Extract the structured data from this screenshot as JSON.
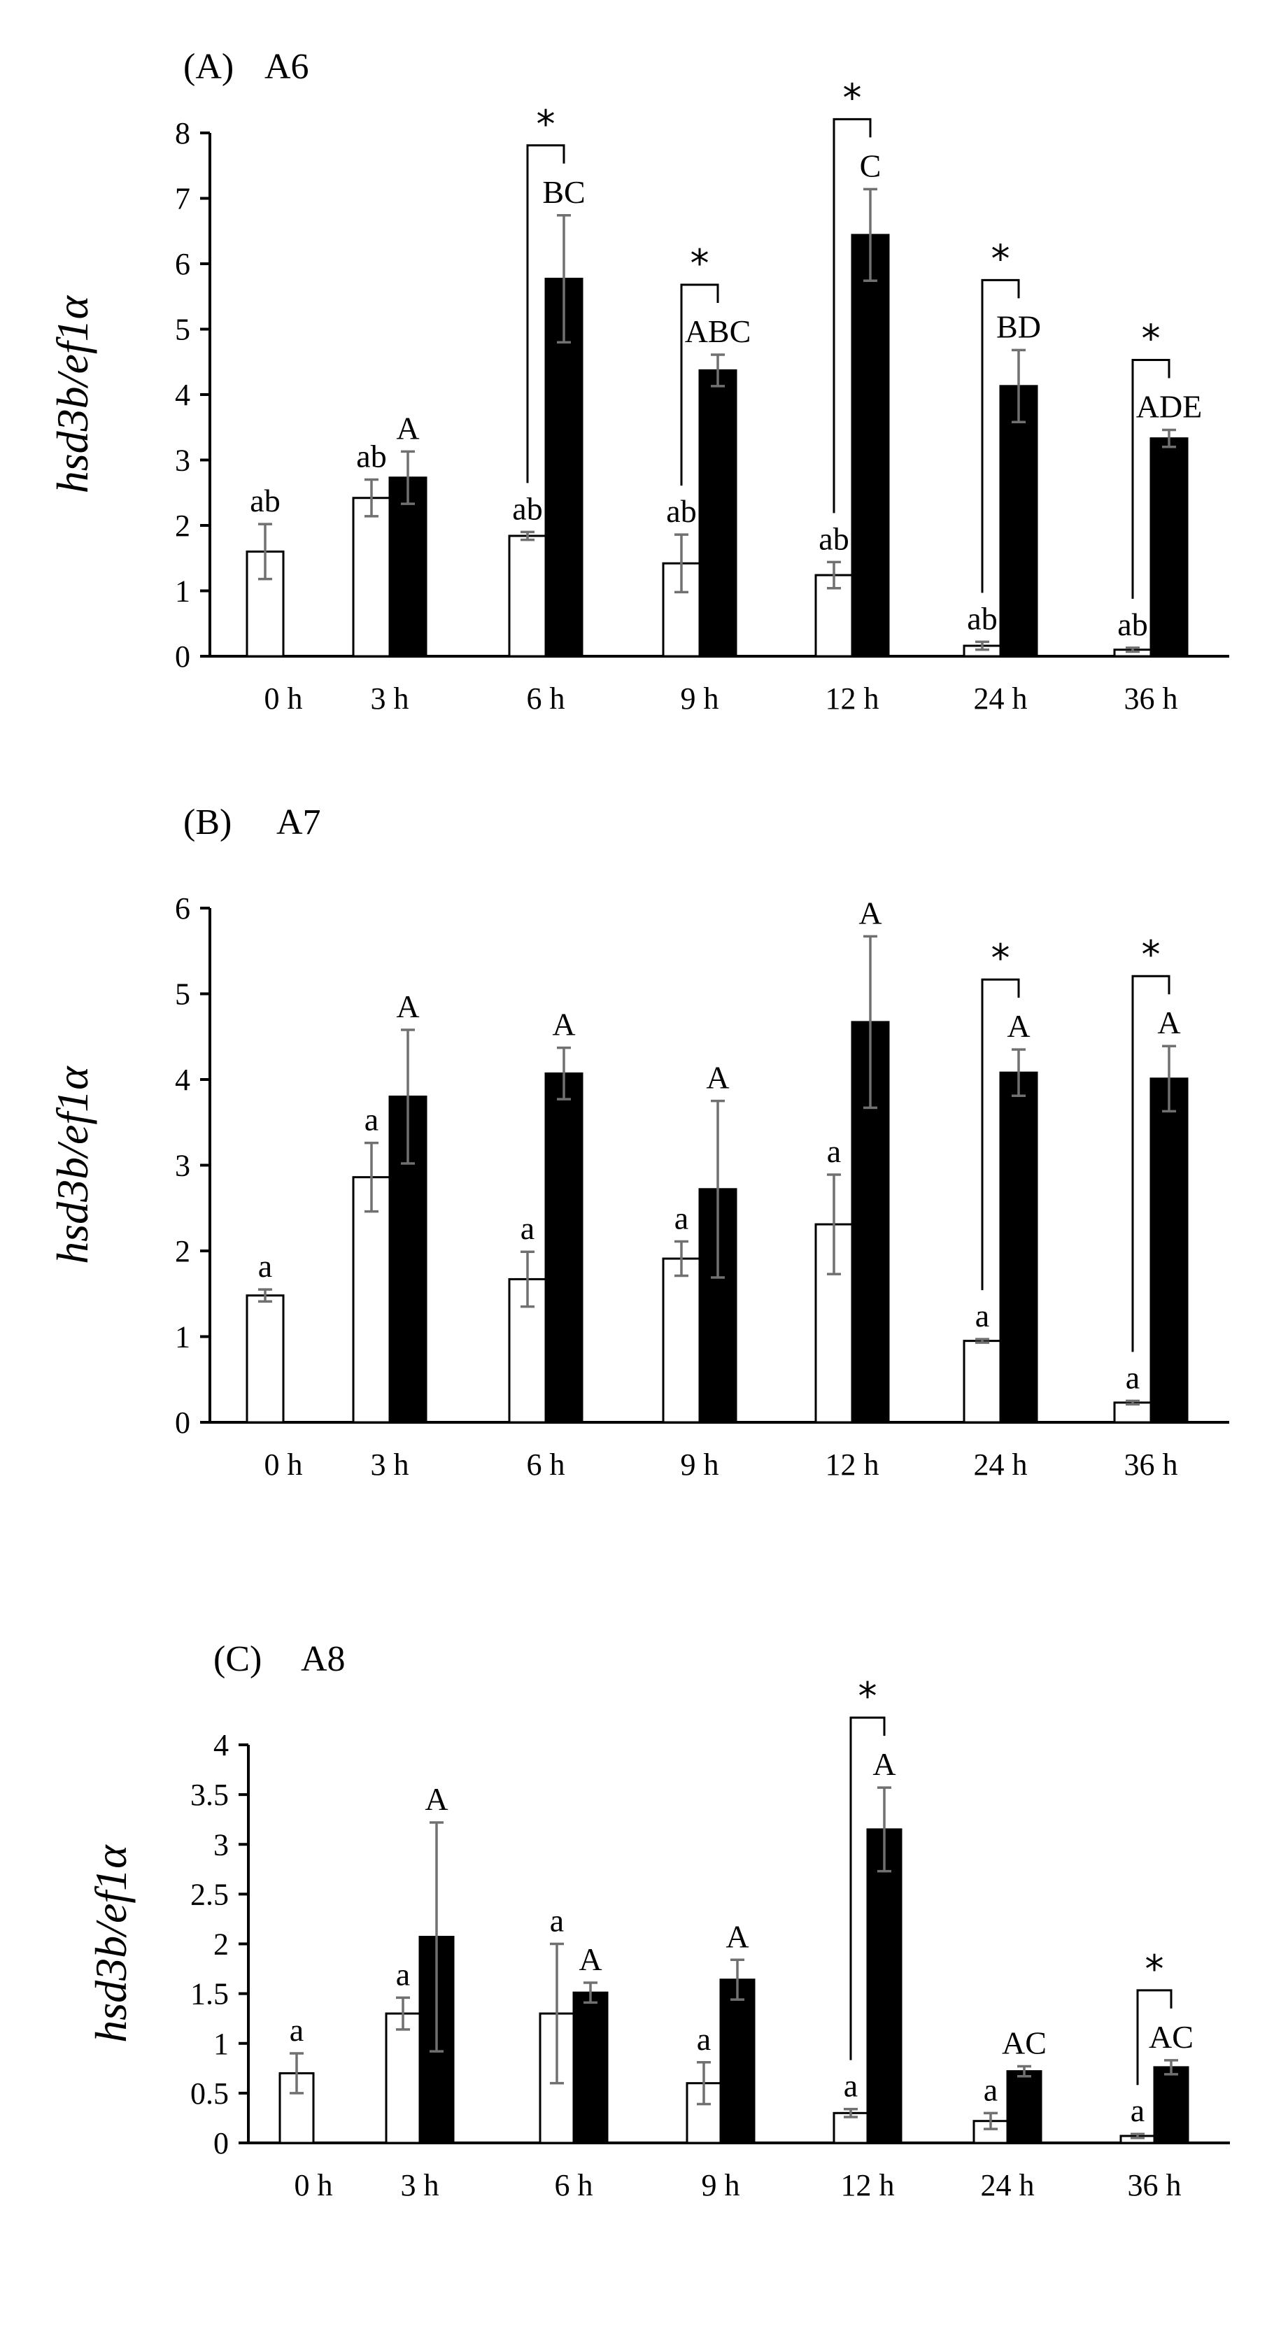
{
  "chart_data": [
    {
      "type": "bar",
      "panel_label": "(A)",
      "title": "A6",
      "ylabel": "hsd3b/ef1α",
      "xlabel": "",
      "categories": [
        "0 h",
        "3 h",
        "6 h",
        "9 h",
        "12 h",
        "24 h",
        "36 h"
      ],
      "ylim": [
        0,
        8
      ],
      "yticks": [
        "0",
        "1",
        "2",
        "3",
        "4",
        "5",
        "6",
        "7",
        "8"
      ],
      "series": [
        {
          "name": "white",
          "fill": "#ffffff",
          "values": [
            1.6,
            2.42,
            1.84,
            1.42,
            1.24,
            0.16,
            0.1
          ],
          "errors": [
            0.42,
            0.28,
            0.06,
            0.44,
            0.2,
            0.06,
            0.03
          ],
          "labels": [
            "ab",
            "ab",
            "ab",
            "ab",
            "ab",
            "ab",
            "ab"
          ]
        },
        {
          "name": "black",
          "fill": "#000000",
          "values": [
            null,
            2.73,
            5.77,
            4.37,
            6.44,
            4.13,
            3.33
          ],
          "errors": [
            null,
            0.4,
            0.97,
            0.24,
            0.7,
            0.55,
            0.13
          ],
          "labels": [
            "",
            "A",
            "BC",
            "ABC",
            "C",
            "BD",
            "ADE"
          ]
        }
      ],
      "significance": [
        {
          "category": 2,
          "star": "*"
        },
        {
          "category": 3,
          "star": "*"
        },
        {
          "category": 4,
          "star": "*"
        },
        {
          "category": 5,
          "star": "*"
        },
        {
          "category": 6,
          "star": "*"
        }
      ]
    },
    {
      "type": "bar",
      "panel_label": "(B)",
      "title": "A7",
      "ylabel": "hsd3b/ef1α",
      "xlabel": "",
      "categories": [
        "0 h",
        "3 h",
        "6 h",
        "9 h",
        "12 h",
        "24 h",
        "36 h"
      ],
      "ylim": [
        0,
        6
      ],
      "yticks": [
        "0",
        "1",
        "2",
        "3",
        "4",
        "5",
        "6"
      ],
      "series": [
        {
          "name": "white",
          "fill": "#ffffff",
          "values": [
            1.48,
            2.86,
            1.67,
            1.91,
            2.31,
            0.95,
            0.23
          ],
          "errors": [
            0.07,
            0.4,
            0.32,
            0.2,
            0.58,
            0.02,
            0.02
          ],
          "labels": [
            "a",
            "a",
            "a",
            "a",
            "a",
            "a",
            "a"
          ]
        },
        {
          "name": "black",
          "fill": "#000000",
          "values": [
            null,
            3.8,
            4.07,
            2.72,
            4.67,
            4.08,
            4.01
          ],
          "errors": [
            null,
            0.78,
            0.3,
            1.03,
            1.0,
            0.27,
            0.38
          ],
          "labels": [
            "",
            "A",
            "A",
            "A",
            "A",
            "A",
            "A"
          ]
        }
      ],
      "significance": [
        {
          "category": 5,
          "star": "*"
        },
        {
          "category": 6,
          "star": "*"
        }
      ]
    },
    {
      "type": "bar",
      "panel_label": "(C)",
      "title": "A8",
      "ylabel": "hsd3b/ef1α",
      "xlabel": "",
      "categories": [
        "0 h",
        "3 h",
        "6 h",
        "9 h",
        "12 h",
        "24 h",
        "36 h"
      ],
      "ylim": [
        0,
        4
      ],
      "yticks": [
        "0",
        "0.5",
        "1",
        "1.5",
        "2",
        "2.5",
        "3",
        "3.5",
        "4"
      ],
      "series": [
        {
          "name": "white",
          "fill": "#ffffff",
          "values": [
            0.7,
            1.3,
            1.3,
            0.6,
            0.3,
            0.22,
            0.07
          ],
          "errors": [
            0.2,
            0.16,
            0.7,
            0.21,
            0.04,
            0.08,
            0.02
          ],
          "labels": [
            "a",
            "a",
            "a",
            "a",
            "a",
            "a",
            "a"
          ]
        },
        {
          "name": "black",
          "fill": "#000000",
          "values": [
            null,
            2.07,
            1.51,
            1.64,
            3.15,
            0.72,
            0.76
          ],
          "errors": [
            null,
            1.15,
            0.1,
            0.2,
            0.42,
            0.05,
            0.07
          ],
          "labels": [
            "",
            "A",
            "A",
            "A",
            "A",
            "AC",
            "AC"
          ]
        }
      ],
      "significance": [
        {
          "category": 4,
          "star": "*"
        },
        {
          "category": 6,
          "star": "*"
        }
      ]
    }
  ]
}
